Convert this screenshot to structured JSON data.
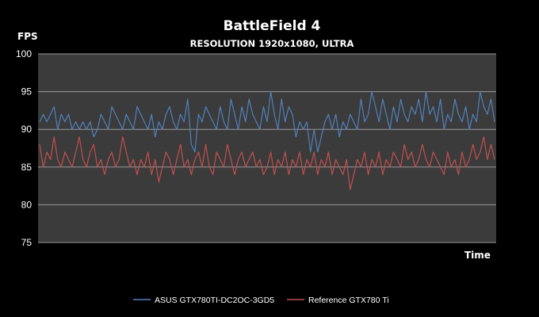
{
  "chart_data": {
    "type": "line",
    "title": "BattleField 4",
    "subtitle": "RESOLUTION 1920x1080, ULTRA",
    "ylabel": "FPS",
    "xlabel": "Time",
    "ylim": [
      75,
      100
    ],
    "yticks": [
      75,
      80,
      85,
      90,
      95,
      100
    ],
    "grid": true,
    "legend_position": "bottom",
    "plot_background": "#3b3b3b",
    "series": [
      {
        "name": "ASUS GTX780TI-DC2OC-3GD5",
        "color": "#4f81bd",
        "values": [
          91,
          92,
          91,
          92,
          93,
          90,
          92,
          91,
          92,
          90,
          91,
          90,
          91,
          90,
          91,
          89,
          90,
          92,
          91,
          90,
          93,
          92,
          91,
          90,
          92,
          91,
          90,
          93,
          92,
          91,
          90,
          92,
          89,
          91,
          90,
          92,
          93,
          91,
          90,
          92,
          91,
          94,
          88,
          87,
          92,
          91,
          93,
          92,
          91,
          90,
          93,
          91,
          90,
          94,
          92,
          90,
          93,
          91,
          94,
          92,
          91,
          90,
          93,
          91,
          95,
          92,
          90,
          94,
          91,
          93,
          92,
          89,
          91,
          90,
          91,
          87,
          90,
          87,
          89,
          91,
          92,
          90,
          92,
          89,
          91,
          90,
          92,
          91,
          90,
          94,
          91,
          92,
          95,
          93,
          91,
          94,
          92,
          90,
          93,
          91,
          94,
          92,
          91,
          93,
          92,
          94,
          91,
          95,
          92,
          93,
          91,
          94,
          90,
          92,
          91,
          94,
          92,
          91,
          93,
          90,
          92,
          91,
          95,
          93,
          92,
          94,
          91
        ]
      },
      {
        "name": "Reference GTX780 Ti",
        "color": "#c0504d",
        "values": [
          88,
          85,
          87,
          86,
          89,
          86,
          85,
          87,
          86,
          85,
          87,
          89,
          86,
          85,
          87,
          88,
          85,
          86,
          84,
          86,
          87,
          85,
          86,
          89,
          87,
          85,
          86,
          84,
          86,
          85,
          87,
          84,
          86,
          83,
          85,
          87,
          86,
          84,
          86,
          88,
          85,
          86,
          84,
          86,
          87,
          85,
          88,
          85,
          84,
          87,
          86,
          85,
          88,
          86,
          84,
          86,
          87,
          85,
          86,
          87,
          85,
          86,
          84,
          85,
          87,
          84,
          86,
          85,
          87,
          84,
          86,
          85,
          87,
          84,
          86,
          85,
          87,
          84,
          86,
          85,
          87,
          84,
          86,
          85,
          84,
          86,
          82,
          84,
          86,
          85,
          87,
          84,
          86,
          85,
          87,
          84,
          86,
          85,
          87,
          86,
          85,
          88,
          86,
          87,
          85,
          86,
          88,
          86,
          85,
          87,
          86,
          85,
          84,
          87,
          85,
          86,
          84,
          87,
          85,
          86,
          88,
          86,
          87,
          89,
          86,
          88,
          86
        ]
      }
    ]
  }
}
